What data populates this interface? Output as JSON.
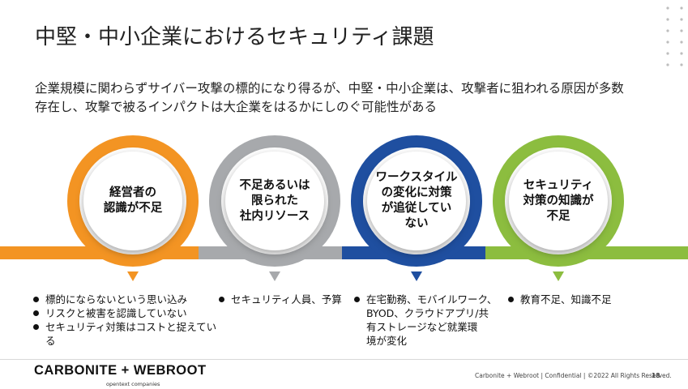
{
  "slide": {
    "title": "中堅・中小企業におけるセキュリティ課題",
    "subtitle_line1": "企業規模に関わらずサイバー攻撃の標的になり得るが、中堅・中小企業は、攻撃者に狙われる原因が多数",
    "subtitle_line2": "存在し、攻撃で被るインパクトは大企業をはるかにしのぐ可能性がある"
  },
  "colors": {
    "orange": "#f39423",
    "gray": "#a7a9ac",
    "blue": "#1f4fa0",
    "green": "#8cbd3f"
  },
  "issues": [
    {
      "title": "経営者の\n認識が不足",
      "color": "#f39423",
      "bullets": [
        "標的にならないという思い込み",
        "リスクと被害を認識していない",
        "セキュリティ対策はコストと捉えている"
      ]
    },
    {
      "title": "不足あるいは\n限られた\n社内リソース",
      "color": "#a7a9ac",
      "bullets": [
        "セキュリティ人員、予算"
      ]
    },
    {
      "title": "ワークスタイル\nの変化に対策\nが追従してい\nない",
      "color": "#1f4fa0",
      "bullets": [
        "在宅勤務、モバイルワーク、\nBYOD、クラウドアプリ/共\n有ストレージなど就業環\n境が変化"
      ]
    },
    {
      "title": "セキュリティ\n対策の知識が\n不足",
      "color": "#8cbd3f",
      "bullets": [
        "教育不足、知識不足"
      ]
    }
  ],
  "footer": {
    "logo": "CARBONITE + WEBROOT",
    "logo_sub": "opentext companies",
    "text": "Carbonite + Webroot | Confidential | ©2022 All Rights Reserved.",
    "page": "18"
  }
}
